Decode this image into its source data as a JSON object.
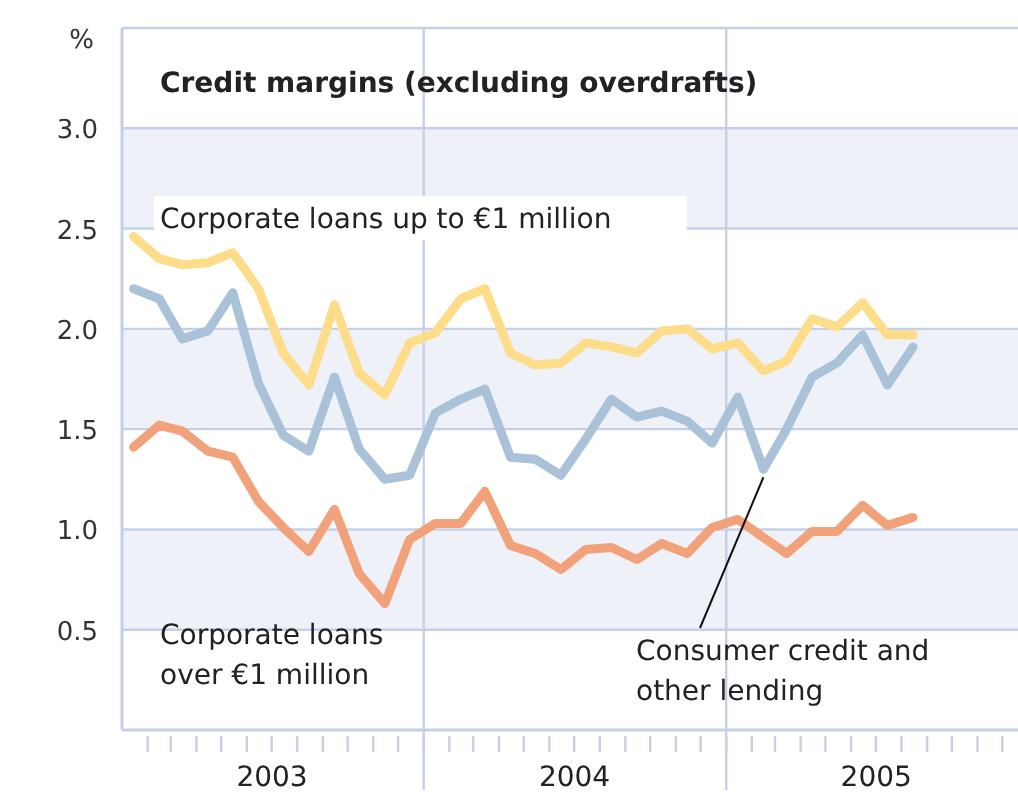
{
  "chart_data": {
    "type": "line",
    "title": "Credit margins (excluding overdrafts)",
    "ylabel": "%",
    "x": [
      "2003-01-15",
      "2003-02-15",
      "2003-03-15",
      "2003-04-15",
      "2003-05-15",
      "2003-06-15",
      "2003-07-15",
      "2003-08-15",
      "2003-09-15",
      "2003-10-15",
      "2003-11-15",
      "2003-12-15",
      "2004-01-15",
      "2004-02-15",
      "2004-03-15",
      "2004-04-15",
      "2004-05-15",
      "2004-06-15",
      "2004-07-15",
      "2004-08-15",
      "2004-09-15",
      "2004-10-15",
      "2004-11-15",
      "2004-12-15",
      "2005-01-15",
      "2005-02-15",
      "2005-03-15",
      "2005-04-15",
      "2005-05-15",
      "2005-06-15",
      "2005-07-15",
      "2005-08-15"
    ],
    "series": [
      {
        "name": "Corporate loans up to €1 million",
        "color": "#fddc8a",
        "values": [
          2.46,
          2.35,
          2.32,
          2.33,
          2.38,
          2.2,
          1.88,
          1.72,
          2.12,
          1.78,
          1.67,
          1.93,
          1.98,
          2.15,
          2.2,
          1.88,
          1.82,
          1.83,
          1.93,
          1.91,
          1.88,
          1.99,
          2.0,
          1.9,
          1.93,
          1.79,
          1.84,
          2.05,
          2.01,
          2.13,
          1.97,
          1.97
        ]
      },
      {
        "name": "Consumer credit and other lending",
        "color": "#a9c2d8",
        "values": [
          2.2,
          2.15,
          1.95,
          1.99,
          2.18,
          1.73,
          1.47,
          1.39,
          1.76,
          1.4,
          1.25,
          1.27,
          1.58,
          1.65,
          1.7,
          1.36,
          1.35,
          1.27,
          1.45,
          1.65,
          1.56,
          1.59,
          1.54,
          1.43,
          1.66,
          1.3,
          1.5,
          1.76,
          1.83,
          1.97,
          1.72,
          1.91
        ]
      },
      {
        "name": "Corporate loans over €1 million",
        "color": "#f2a27a",
        "values": [
          1.41,
          1.52,
          1.49,
          1.39,
          1.36,
          1.14,
          1.01,
          0.89,
          1.1,
          0.78,
          0.63,
          0.95,
          1.03,
          1.03,
          1.19,
          0.92,
          0.88,
          0.8,
          0.9,
          0.91,
          0.85,
          0.93,
          0.88,
          1.01,
          1.05,
          0.96,
          0.88,
          0.99,
          0.99,
          1.12,
          1.02,
          1.06
        ]
      }
    ],
    "xlim": [
      "2003-01-01",
      "2005-12-20"
    ],
    "xticks": [
      {
        "value": "2003-02-01",
        "label": null
      },
      {
        "value": "2003-03-01",
        "label": null
      },
      {
        "value": "2003-04-01",
        "label": null
      },
      {
        "value": "2003-05-01",
        "label": null
      },
      {
        "value": "2003-06-01",
        "label": null
      },
      {
        "value": "2003-07-01",
        "label": null
      },
      {
        "value": "2003-08-01",
        "label": null
      },
      {
        "value": "2003-09-01",
        "label": null
      },
      {
        "value": "2003-10-01",
        "label": null
      },
      {
        "value": "2003-11-01",
        "label": null
      },
      {
        "value": "2003-12-01",
        "label": null
      },
      {
        "value": "2004-01-01",
        "label": null
      },
      {
        "value": "2004-02-01",
        "label": null
      },
      {
        "value": "2004-03-01",
        "label": null
      },
      {
        "value": "2004-04-01",
        "label": null
      },
      {
        "value": "2004-05-01",
        "label": null
      },
      {
        "value": "2004-06-01",
        "label": null
      },
      {
        "value": "2004-07-01",
        "label": null
      },
      {
        "value": "2004-08-01",
        "label": null
      },
      {
        "value": "2004-09-01",
        "label": null
      },
      {
        "value": "2004-10-01",
        "label": null
      },
      {
        "value": "2004-11-01",
        "label": null
      },
      {
        "value": "2004-12-01",
        "label": null
      },
      {
        "value": "2005-01-01",
        "label": null
      },
      {
        "value": "2005-02-01",
        "label": null
      },
      {
        "value": "2005-03-01",
        "label": null
      },
      {
        "value": "2005-04-01",
        "label": null
      },
      {
        "value": "2005-05-01",
        "label": null
      },
      {
        "value": "2005-06-01",
        "label": null
      },
      {
        "value": "2005-07-01",
        "label": null
      },
      {
        "value": "2005-08-01",
        "label": null
      },
      {
        "value": "2005-09-01",
        "label": null
      },
      {
        "value": "2005-10-01",
        "label": null
      },
      {
        "value": "2005-11-01",
        "label": null
      },
      {
        "value": "2005-12-01",
        "label": null
      },
      {
        "value": "2003-07-01T12:00",
        "label": "2003"
      },
      {
        "value": "2004-07-01T12:00",
        "label": "2004"
      },
      {
        "value": "2005-07-01T12:00",
        "label": "2005"
      }
    ],
    "ylim": [
      0,
      3.5
    ],
    "yticks": [
      0.5,
      {
        "value": 1,
        "label": "1.0"
      },
      1.5,
      {
        "value": 2,
        "label": "2.0"
      },
      2.5,
      {
        "value": 3,
        "label": "3.0"
      }
    ],
    "grid": true,
    "marker": "none",
    "line_style": "solid"
  }
}
